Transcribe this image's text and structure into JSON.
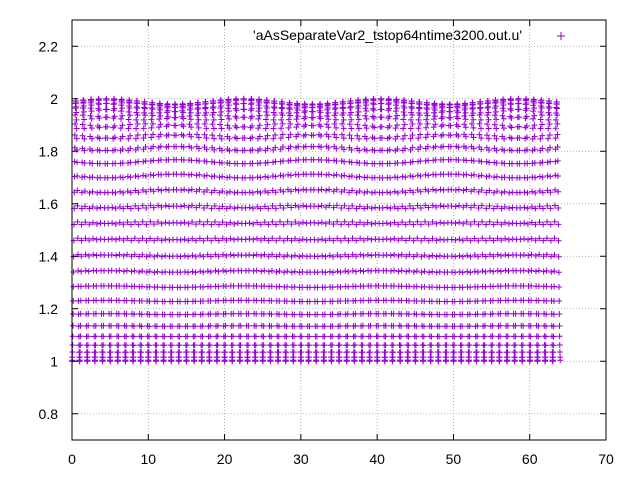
{
  "chart_data": {
    "type": "scatter",
    "title": "",
    "xlabel": "",
    "ylabel": "",
    "xlim": [
      0,
      70
    ],
    "ylim": [
      0.7,
      2.3
    ],
    "x_ticks": [
      0,
      10,
      20,
      30,
      40,
      50,
      60,
      70
    ],
    "y_ticks": [
      0.8,
      1,
      1.2,
      1.4,
      1.6,
      1.8,
      2,
      2.2
    ],
    "x_tick_labels": [
      "0",
      "10",
      "20",
      "30",
      "40",
      "50",
      "60",
      "70"
    ],
    "y_tick_labels": [
      "0.8",
      "1",
      "1.2",
      "1.4",
      "1.6",
      "1.8",
      "2",
      "2.2"
    ],
    "grid": true,
    "legend_position": "top-right",
    "marker": "+",
    "series": [
      {
        "name": "'aAsSeparateVar2_tstop64ntime3200.out.u'",
        "color": "#9400d3",
        "x_range": [
          0,
          64
        ],
        "y_range": [
          1,
          2
        ],
        "point_count": 3200
      }
    ]
  }
}
